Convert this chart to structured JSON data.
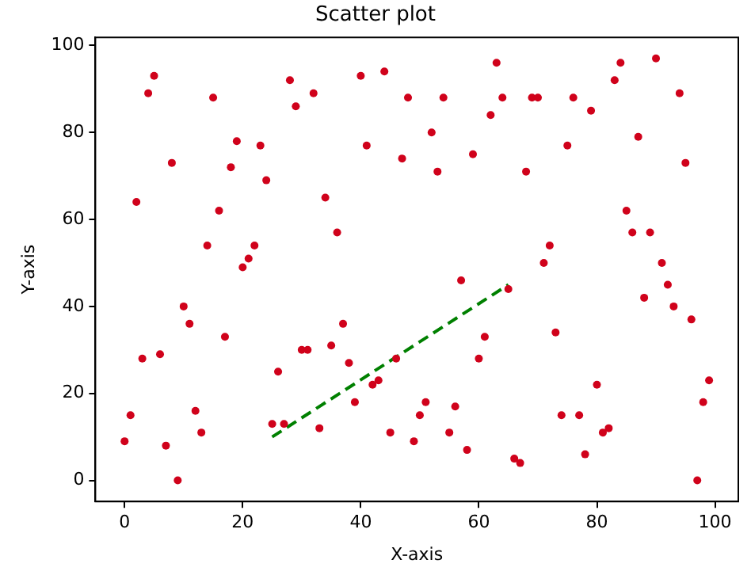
{
  "chart_data": {
    "type": "scatter",
    "title": "Scatter plot",
    "xlabel": "X-axis",
    "ylabel": "Y-axis",
    "xlim": [
      -4.95,
      103.95
    ],
    "ylim": [
      -4.85,
      101.85
    ],
    "xticks": [
      0,
      20,
      40,
      60,
      80,
      100
    ],
    "yticks": [
      0,
      20,
      40,
      60,
      80,
      100
    ],
    "grid": false,
    "legend": false,
    "marker": "circle",
    "series": [
      {
        "color": "#d0021b",
        "x": [
          0,
          1,
          2,
          3,
          4,
          5,
          6,
          7,
          8,
          9,
          10,
          11,
          12,
          13,
          14,
          15,
          16,
          17,
          18,
          19,
          20,
          21,
          22,
          23,
          24,
          25,
          26,
          27,
          28,
          29,
          30,
          31,
          32,
          33,
          34,
          35,
          36,
          37,
          38,
          39,
          40,
          41,
          42,
          43,
          44,
          45,
          46,
          47,
          48,
          49,
          50,
          51,
          52,
          53,
          54,
          55,
          56,
          57,
          58,
          59,
          60,
          61,
          62,
          63,
          64,
          65,
          66,
          67,
          68,
          69,
          70,
          71,
          72,
          73,
          74,
          75,
          76,
          77,
          78,
          79,
          80,
          81,
          82,
          83,
          84,
          85,
          86,
          87,
          88,
          89,
          90,
          91,
          92,
          93,
          94,
          95,
          96,
          97,
          98,
          99
        ],
        "values": [
          9,
          15,
          64,
          28,
          89,
          93,
          29,
          8,
          73,
          0,
          40,
          36,
          16,
          11,
          54,
          88,
          62,
          33,
          72,
          78,
          49,
          51,
          54,
          77,
          69,
          13,
          25,
          13,
          92,
          86,
          30,
          30,
          89,
          12,
          65,
          31,
          57,
          36,
          27,
          18,
          93,
          77,
          22,
          23,
          94,
          11,
          28,
          74,
          88,
          9,
          15,
          18,
          80,
          71,
          88,
          11,
          17,
          46,
          7,
          75,
          28,
          33,
          84,
          96,
          88,
          44,
          5,
          4,
          71,
          88,
          88,
          50,
          54,
          34,
          15,
          77,
          88,
          15,
          6,
          85,
          22,
          11,
          12,
          92,
          96,
          62,
          57,
          79,
          42,
          57,
          97,
          50,
          45,
          40,
          89,
          73,
          37,
          0,
          18,
          23
        ]
      },
      {
        "type": "line",
        "color": "#008000",
        "line_style": "dashed",
        "marker": "none",
        "x": [
          25,
          65
        ],
        "values": [
          10,
          45
        ]
      }
    ]
  }
}
